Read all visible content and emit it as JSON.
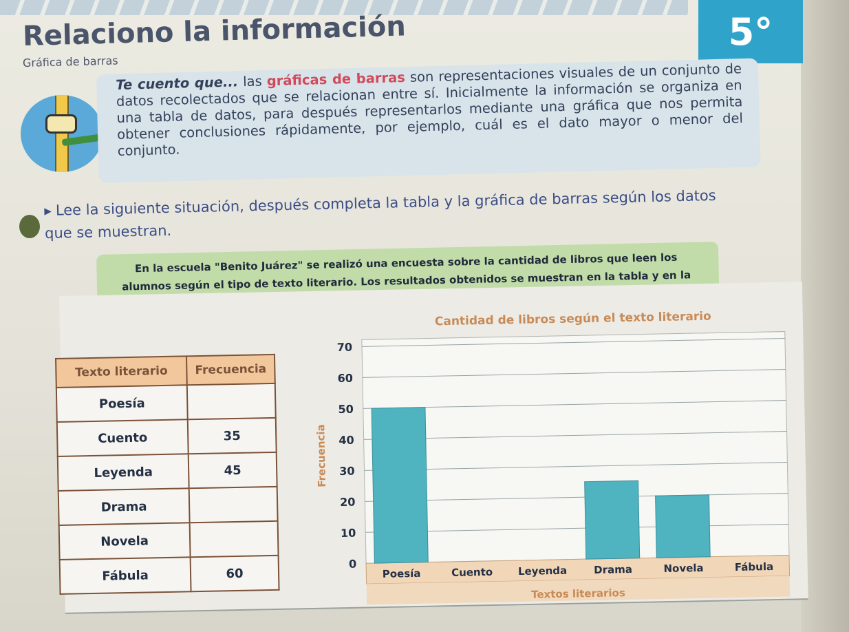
{
  "header": {
    "title": "Relaciono la información",
    "subtitle": "Gráfica de barras",
    "grade": "5°"
  },
  "info": {
    "lead": "Te cuento que...",
    "pre": " las ",
    "highlight": "gráficas de barras",
    "body": " son representaciones visuales de un conjunto de datos recolectados que se relacionan entre sí. Inicialmente la información se organiza en una tabla de datos, para después representarlos mediante una gráfica que nos permita obtener conclusiones rápidamente, por ejemplo, cuál es el dato mayor o menor del conjunto."
  },
  "instruction": "Lee la siguiente situación, después completa la tabla y la gráfica de barras según los datos que se muestran.",
  "banner": "En la escuela \"Benito Juárez\" se realizó una encuesta sobre la cantidad de libros que leen los alumnos según el tipo de texto literario. Los resultados obtenidos se muestran en la tabla y en la gráfica de barras.",
  "table": {
    "headers": [
      "Texto literario",
      "Frecuencia"
    ],
    "rows": [
      {
        "label": "Poesía",
        "value": ""
      },
      {
        "label": "Cuento",
        "value": "35"
      },
      {
        "label": "Leyenda",
        "value": "45"
      },
      {
        "label": "Drama",
        "value": ""
      },
      {
        "label": "Novela",
        "value": ""
      },
      {
        "label": "Fábula",
        "value": "60"
      }
    ]
  },
  "chart_data": {
    "type": "bar",
    "title": "Cantidad de libros según el texto literario",
    "xlabel": "Textos literarios",
    "ylabel": "Frecuencia",
    "ylim": [
      0,
      70
    ],
    "yticks": [
      0,
      10,
      20,
      30,
      40,
      50,
      60,
      70
    ],
    "categories": [
      "Poesía",
      "Cuento",
      "Leyenda",
      "Drama",
      "Novela",
      "Fábula"
    ],
    "values": [
      50,
      null,
      null,
      25,
      20,
      null
    ],
    "grid": true,
    "colors": {
      "bar": "#4fb3c0",
      "title": "#c98a55",
      "axis_band": "#f2d6b8"
    }
  }
}
